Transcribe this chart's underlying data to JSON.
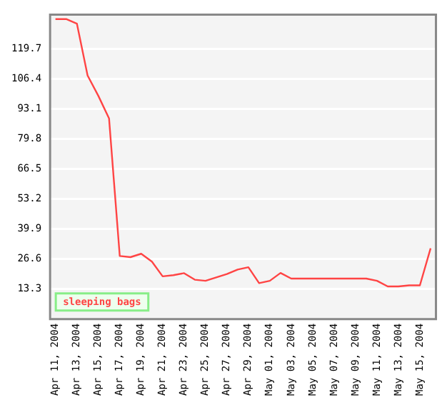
{
  "chart_data": {
    "type": "line",
    "categories": [
      "Apr 11, 2004",
      null,
      "Apr 13, 2004",
      null,
      "Apr 15, 2004",
      null,
      "Apr 17, 2004",
      null,
      "Apr 19, 2004",
      null,
      "Apr 21, 2004",
      null,
      "Apr 23, 2004",
      null,
      "Apr 25, 2004",
      null,
      "Apr 27, 2004",
      null,
      "Apr 29, 2004",
      null,
      "May 01, 2004",
      null,
      "May 03, 2004",
      null,
      "May 05, 2004",
      null,
      "May 07, 2004",
      null,
      "May 09, 2004",
      null,
      "May 11, 2004",
      null,
      "May 13, 2004",
      null,
      "May 15, 2004",
      null
    ],
    "series": [
      {
        "name": "sleeping bags",
        "color": "#ff4444",
        "values": [
          133,
          133,
          131,
          108,
          99,
          89,
          28,
          27.5,
          29,
          25.5,
          19,
          19.5,
          20.4,
          17.5,
          17,
          18.5,
          20,
          22,
          23,
          16,
          17,
          20.5,
          18,
          18,
          18,
          18,
          18,
          18,
          18,
          18,
          17,
          14.5,
          14.5,
          15,
          15,
          31.4
        ]
      }
    ],
    "ylim": [
      0,
      135
    ],
    "yticks": [
      13.3,
      26.6,
      39.9,
      53.2,
      66.5,
      79.8,
      93.1,
      106.4,
      119.7
    ],
    "grid": "y",
    "legend": "bottom left",
    "marker": "none",
    "line_style": "solid"
  }
}
